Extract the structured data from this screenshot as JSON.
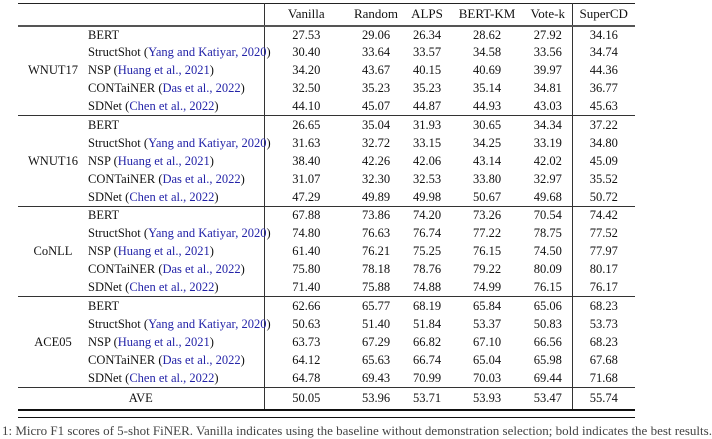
{
  "colors": {
    "citation_blue": "#2323a8",
    "rule_dark": "#222222",
    "text": "#111111"
  },
  "caption": {
    "fragment": "1: Micro F1 scores of 5-shot FiNER. Vanilla indicates using the baseline without demonstration selection; bold indicates the best results."
  },
  "table": {
    "paren_open": "(",
    "paren_close": ")",
    "columns": [
      "Vanilla",
      "Random",
      "ALPS",
      "BERT-KM",
      "Vote-k",
      "SuperCD"
    ],
    "groups": [
      {
        "dataset": "WNUT17",
        "rows": [
          {
            "method": "BERT",
            "citation": "",
            "values": [
              "27.53",
              "29.06",
              "26.34",
              "28.62",
              "27.92",
              "34.16"
            ],
            "bold": [
              false,
              false,
              false,
              false,
              false,
              true
            ]
          },
          {
            "method": "StructShot ",
            "citation": "Yang and Katiyar, 2020",
            "values": [
              "30.40",
              "33.64",
              "33.57",
              "34.58",
              "33.56",
              "34.74"
            ],
            "bold": [
              false,
              false,
              false,
              false,
              false,
              true
            ]
          },
          {
            "method": "NSP ",
            "citation": "Huang et al., 2021",
            "values": [
              "34.20",
              "43.67",
              "40.15",
              "40.69",
              "39.97",
              "44.36"
            ],
            "bold": [
              false,
              false,
              false,
              false,
              false,
              true
            ]
          },
          {
            "method": "CONTaiNER ",
            "citation": "Das et al., 2022",
            "values": [
              "32.50",
              "35.23",
              "35.23",
              "35.14",
              "34.81",
              "36.77"
            ],
            "bold": [
              false,
              false,
              false,
              false,
              false,
              true
            ]
          },
          {
            "method": "SDNet ",
            "citation": "Chen et al., 2022",
            "values": [
              "44.10",
              "45.07",
              "44.87",
              "44.93",
              "43.03",
              "45.63"
            ],
            "bold": [
              false,
              false,
              false,
              false,
              false,
              true
            ]
          }
        ]
      },
      {
        "dataset": "WNUT16",
        "rows": [
          {
            "method": "BERT",
            "citation": "",
            "values": [
              "26.65",
              "35.04",
              "31.93",
              "30.65",
              "34.34",
              "37.22"
            ],
            "bold": [
              false,
              false,
              false,
              false,
              false,
              true
            ]
          },
          {
            "method": "StructShot ",
            "citation": "Yang and Katiyar, 2020",
            "values": [
              "31.63",
              "32.72",
              "33.15",
              "34.25",
              "33.19",
              "34.80"
            ],
            "bold": [
              false,
              false,
              false,
              false,
              false,
              true
            ]
          },
          {
            "method": "NSP ",
            "citation": "Huang et al., 2021",
            "values": [
              "38.40",
              "42.26",
              "42.06",
              "43.14",
              "42.02",
              "45.09"
            ],
            "bold": [
              false,
              false,
              false,
              false,
              false,
              true
            ]
          },
          {
            "method": "CONTaiNER ",
            "citation": "Das et al., 2022",
            "values": [
              "31.07",
              "32.30",
              "32.53",
              "33.80",
              "32.97",
              "35.52"
            ],
            "bold": [
              false,
              false,
              false,
              false,
              false,
              true
            ]
          },
          {
            "method": "SDNet ",
            "citation": "Chen et al., 2022",
            "values": [
              "47.29",
              "49.89",
              "49.98",
              "50.67",
              "49.68",
              "50.72"
            ],
            "bold": [
              false,
              false,
              false,
              false,
              false,
              true
            ]
          }
        ]
      },
      {
        "dataset": "CoNLL",
        "rows": [
          {
            "method": "BERT",
            "citation": "",
            "values": [
              "67.88",
              "73.86",
              "74.20",
              "73.26",
              "70.54",
              "74.42"
            ],
            "bold": [
              false,
              false,
              false,
              false,
              false,
              true
            ]
          },
          {
            "method": "StructShot ",
            "citation": "Yang and Katiyar, 2020",
            "values": [
              "74.80",
              "76.63",
              "76.74",
              "77.22",
              "78.75",
              "77.52"
            ],
            "bold": [
              false,
              false,
              false,
              false,
              true,
              false
            ]
          },
          {
            "method": "NSP ",
            "citation": "Huang et al., 2021",
            "values": [
              "61.40",
              "76.21",
              "75.25",
              "76.15",
              "74.50",
              "77.97"
            ],
            "bold": [
              false,
              false,
              false,
              false,
              false,
              true
            ]
          },
          {
            "method": "CONTaiNER ",
            "citation": "Das et al., 2022",
            "values": [
              "75.80",
              "78.18",
              "78.76",
              "79.22",
              "80.09",
              "80.17"
            ],
            "bold": [
              false,
              false,
              false,
              false,
              false,
              true
            ]
          },
          {
            "method": "SDNet ",
            "citation": "Chen et al., 2022",
            "values": [
              "71.40",
              "75.88",
              "74.88",
              "74.99",
              "76.15",
              "76.17"
            ],
            "bold": [
              false,
              false,
              false,
              false,
              false,
              true
            ]
          }
        ]
      },
      {
        "dataset": "ACE05",
        "rows": [
          {
            "method": "BERT",
            "citation": "",
            "values": [
              "62.66",
              "65.77",
              "68.19",
              "65.84",
              "65.06",
              "68.23"
            ],
            "bold": [
              false,
              false,
              false,
              false,
              false,
              true
            ]
          },
          {
            "method": "StructShot ",
            "citation": "Yang and Katiyar, 2020",
            "values": [
              "50.63",
              "51.40",
              "51.84",
              "53.37",
              "50.83",
              "53.73"
            ],
            "bold": [
              false,
              false,
              false,
              false,
              false,
              true
            ]
          },
          {
            "method": "NSP ",
            "citation": "Huang et al., 2021",
            "values": [
              "63.73",
              "67.29",
              "66.82",
              "67.10",
              "66.56",
              "68.23"
            ],
            "bold": [
              false,
              false,
              false,
              false,
              false,
              true
            ]
          },
          {
            "method": "CONTaiNER ",
            "citation": "Das et al., 2022",
            "values": [
              "64.12",
              "65.63",
              "66.74",
              "65.04",
              "65.98",
              "67.68"
            ],
            "bold": [
              false,
              false,
              false,
              false,
              false,
              true
            ]
          },
          {
            "method": "SDNet ",
            "citation": "Chen et al., 2022",
            "values": [
              "64.78",
              "69.43",
              "70.99",
              "70.03",
              "69.44",
              "71.68"
            ],
            "bold": [
              false,
              false,
              false,
              false,
              false,
              true
            ]
          }
        ]
      }
    ],
    "average": {
      "label": "AVE",
      "values": [
        "50.05",
        "53.96",
        "53.71",
        "53.93",
        "53.47",
        "55.74"
      ],
      "bold": [
        false,
        false,
        false,
        false,
        false,
        true
      ]
    }
  }
}
